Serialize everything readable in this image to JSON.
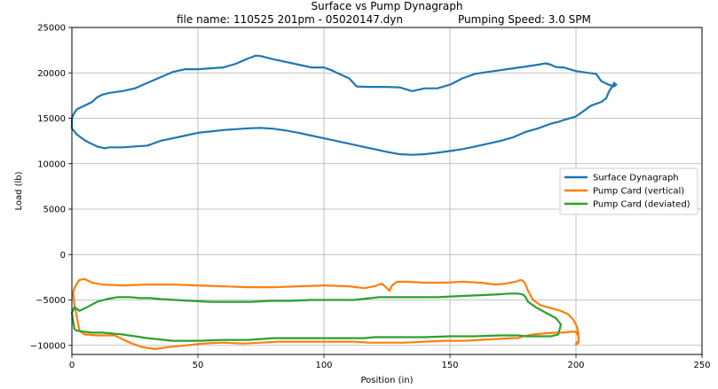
{
  "chart_data": {
    "type": "line",
    "title": "Surface vs Pump Dynagraph",
    "subtitle_left": "file name: 110525 201pm - 05020147.dyn",
    "subtitle_right": "Pumping Speed: 3.0 SPM",
    "xlabel": "Position (in)",
    "ylabel": "Load (lb)",
    "xlim": [
      0,
      250
    ],
    "ylim": [
      -11000,
      25000
    ],
    "xticks": [
      0,
      50,
      100,
      150,
      200,
      250
    ],
    "yticks": [
      -10000,
      -5000,
      0,
      5000,
      10000,
      15000,
      20000,
      25000
    ],
    "grid": true,
    "legend_position": "center-right",
    "series": [
      {
        "name": "Surface Dynagraph",
        "color": "#1f77b4",
        "x": [
          215,
          213,
          212,
          210,
          206,
          203,
          200,
          195,
          193,
          190,
          188,
          185,
          180,
          175,
          170,
          165,
          160,
          155,
          150,
          145,
          140,
          135,
          130,
          125,
          120,
          115,
          110,
          105,
          100,
          95,
          90,
          85,
          80,
          75,
          70,
          65,
          60,
          55,
          50,
          45,
          40,
          35,
          30,
          25,
          20,
          15,
          13,
          10,
          7,
          5,
          2,
          0,
          0,
          1,
          2,
          5,
          8,
          10,
          12,
          15,
          20,
          25,
          30,
          35,
          40,
          45,
          50,
          55,
          60,
          65,
          70,
          73,
          75,
          80,
          85,
          90,
          95,
          100,
          103,
          106,
          110,
          113,
          118,
          125,
          130,
          135,
          140,
          145,
          150,
          155,
          160,
          165,
          170,
          175,
          180,
          185,
          188,
          190,
          192,
          195,
          200,
          205,
          208,
          210,
          213,
          215,
          216,
          215
        ],
        "y": [
          18800,
          17900,
          17200,
          16800,
          16400,
          15800,
          15200,
          14800,
          14600,
          14400,
          14200,
          13900,
          13500,
          12900,
          12500,
          12200,
          11900,
          11600,
          11400,
          11200,
          11050,
          10980,
          11050,
          11300,
          11600,
          11900,
          12200,
          12500,
          12800,
          13100,
          13400,
          13650,
          13850,
          13950,
          13900,
          13800,
          13700,
          13550,
          13400,
          13100,
          12800,
          12500,
          12000,
          11900,
          11800,
          11800,
          11700,
          11900,
          12300,
          12600,
          13200,
          13900,
          15000,
          15600,
          16000,
          16400,
          16800,
          17300,
          17600,
          17800,
          18000,
          18300,
          18900,
          19500,
          20100,
          20400,
          20400,
          20500,
          20600,
          21000,
          21600,
          21900,
          21850,
          21500,
          21200,
          20900,
          20600,
          20600,
          20300,
          19900,
          19400,
          18500,
          18450,
          18450,
          18400,
          18000,
          18300,
          18300,
          18700,
          19400,
          19900,
          20100,
          20300,
          20500,
          20700,
          20900,
          21050,
          20900,
          20650,
          20600,
          20200,
          20000,
          19900,
          19100,
          18700,
          18500,
          18700,
          18900
        ]
      },
      {
        "name": "Pump Card (vertical)",
        "color": "#ff7f0e",
        "x": [
          200,
          201,
          201,
          200,
          198,
          195,
          192,
          187,
          183,
          181,
          179,
          177,
          174,
          168,
          162,
          155,
          148,
          140,
          132,
          128,
          126,
          124,
          122,
          118,
          112,
          105,
          98,
          90,
          82,
          75,
          68,
          60,
          52,
          45,
          38,
          33,
          28,
          23,
          17,
          10,
          5,
          3,
          2,
          1,
          0.5,
          1,
          2,
          3,
          5,
          8,
          12,
          20,
          30,
          40,
          50,
          60,
          70,
          80,
          90,
          100,
          110,
          116,
          120,
          123,
          125,
          126,
          127,
          129,
          133,
          140,
          148,
          155,
          162,
          168,
          172,
          176,
          178,
          179,
          180,
          181,
          183,
          186,
          190,
          194,
          197,
          199,
          200.5,
          201,
          201,
          200
        ],
        "y": [
          -9900,
          -9700,
          -9000,
          -8500,
          -8500,
          -8600,
          -8600,
          -8700,
          -8800,
          -8900,
          -9000,
          -9200,
          -9200,
          -9300,
          -9400,
          -9500,
          -9500,
          -9600,
          -9700,
          -9700,
          -9700,
          -9700,
          -9700,
          -9700,
          -9600,
          -9600,
          -9600,
          -9600,
          -9600,
          -9700,
          -9800,
          -9700,
          -9800,
          -10000,
          -10200,
          -10400,
          -10200,
          -9700,
          -8900,
          -8900,
          -8800,
          -8400,
          -7000,
          -5500,
          -4200,
          -3700,
          -3200,
          -2800,
          -2700,
          -3100,
          -3300,
          -3400,
          -3300,
          -3300,
          -3400,
          -3500,
          -3600,
          -3600,
          -3500,
          -3400,
          -3500,
          -3700,
          -3500,
          -3200,
          -3700,
          -4000,
          -3400,
          -3000,
          -3000,
          -3100,
          -3100,
          -3000,
          -3100,
          -3300,
          -3200,
          -3000,
          -2800,
          -2900,
          -3300,
          -4000,
          -5000,
          -5600,
          -5900,
          -6200,
          -6600,
          -7200,
          -8000,
          -8800,
          -9500,
          -9800
        ]
      },
      {
        "name": "Pump Card (deviated)",
        "color": "#2ca02c",
        "x": [
          193,
          194,
          192,
          188,
          184,
          181,
          180,
          179,
          177,
          174,
          168,
          160,
          152,
          145,
          138,
          130,
          122,
          112,
          104,
          95,
          87,
          79,
          71,
          63,
          55,
          47,
          41,
          35,
          31,
          27,
          23,
          18,
          14,
          10,
          6,
          3,
          1,
          0,
          0.5,
          1,
          2,
          3,
          5,
          8,
          12,
          16,
          20,
          30,
          40,
          50,
          60,
          70,
          80,
          90,
          100,
          110,
          116,
          120,
          124,
          126,
          128,
          132,
          140,
          150,
          160,
          170,
          175,
          177,
          180,
          185,
          190,
          193
        ],
        "y": [
          -8800,
          -7700,
          -7000,
          -6400,
          -5800,
          -5200,
          -4700,
          -4400,
          -4300,
          -4300,
          -4400,
          -4500,
          -4600,
          -4700,
          -4700,
          -4700,
          -4700,
          -5000,
          -5000,
          -5000,
          -5100,
          -5100,
          -5200,
          -5200,
          -5200,
          -5100,
          -5000,
          -4900,
          -4800,
          -4800,
          -4700,
          -4700,
          -4900,
          -5200,
          -5800,
          -6200,
          -5800,
          -6400,
          -7300,
          -8200,
          -8400,
          -8400,
          -8500,
          -8600,
          -8600,
          -8700,
          -8800,
          -9200,
          -9500,
          -9500,
          -9400,
          -9400,
          -9200,
          -9200,
          -9200,
          -9200,
          -9200,
          -9100,
          -9100,
          -9100,
          -9100,
          -9100,
          -9100,
          -9000,
          -9000,
          -8900,
          -8900,
          -8900,
          -9000,
          -9000,
          -9000,
          -8800
        ]
      }
    ]
  }
}
